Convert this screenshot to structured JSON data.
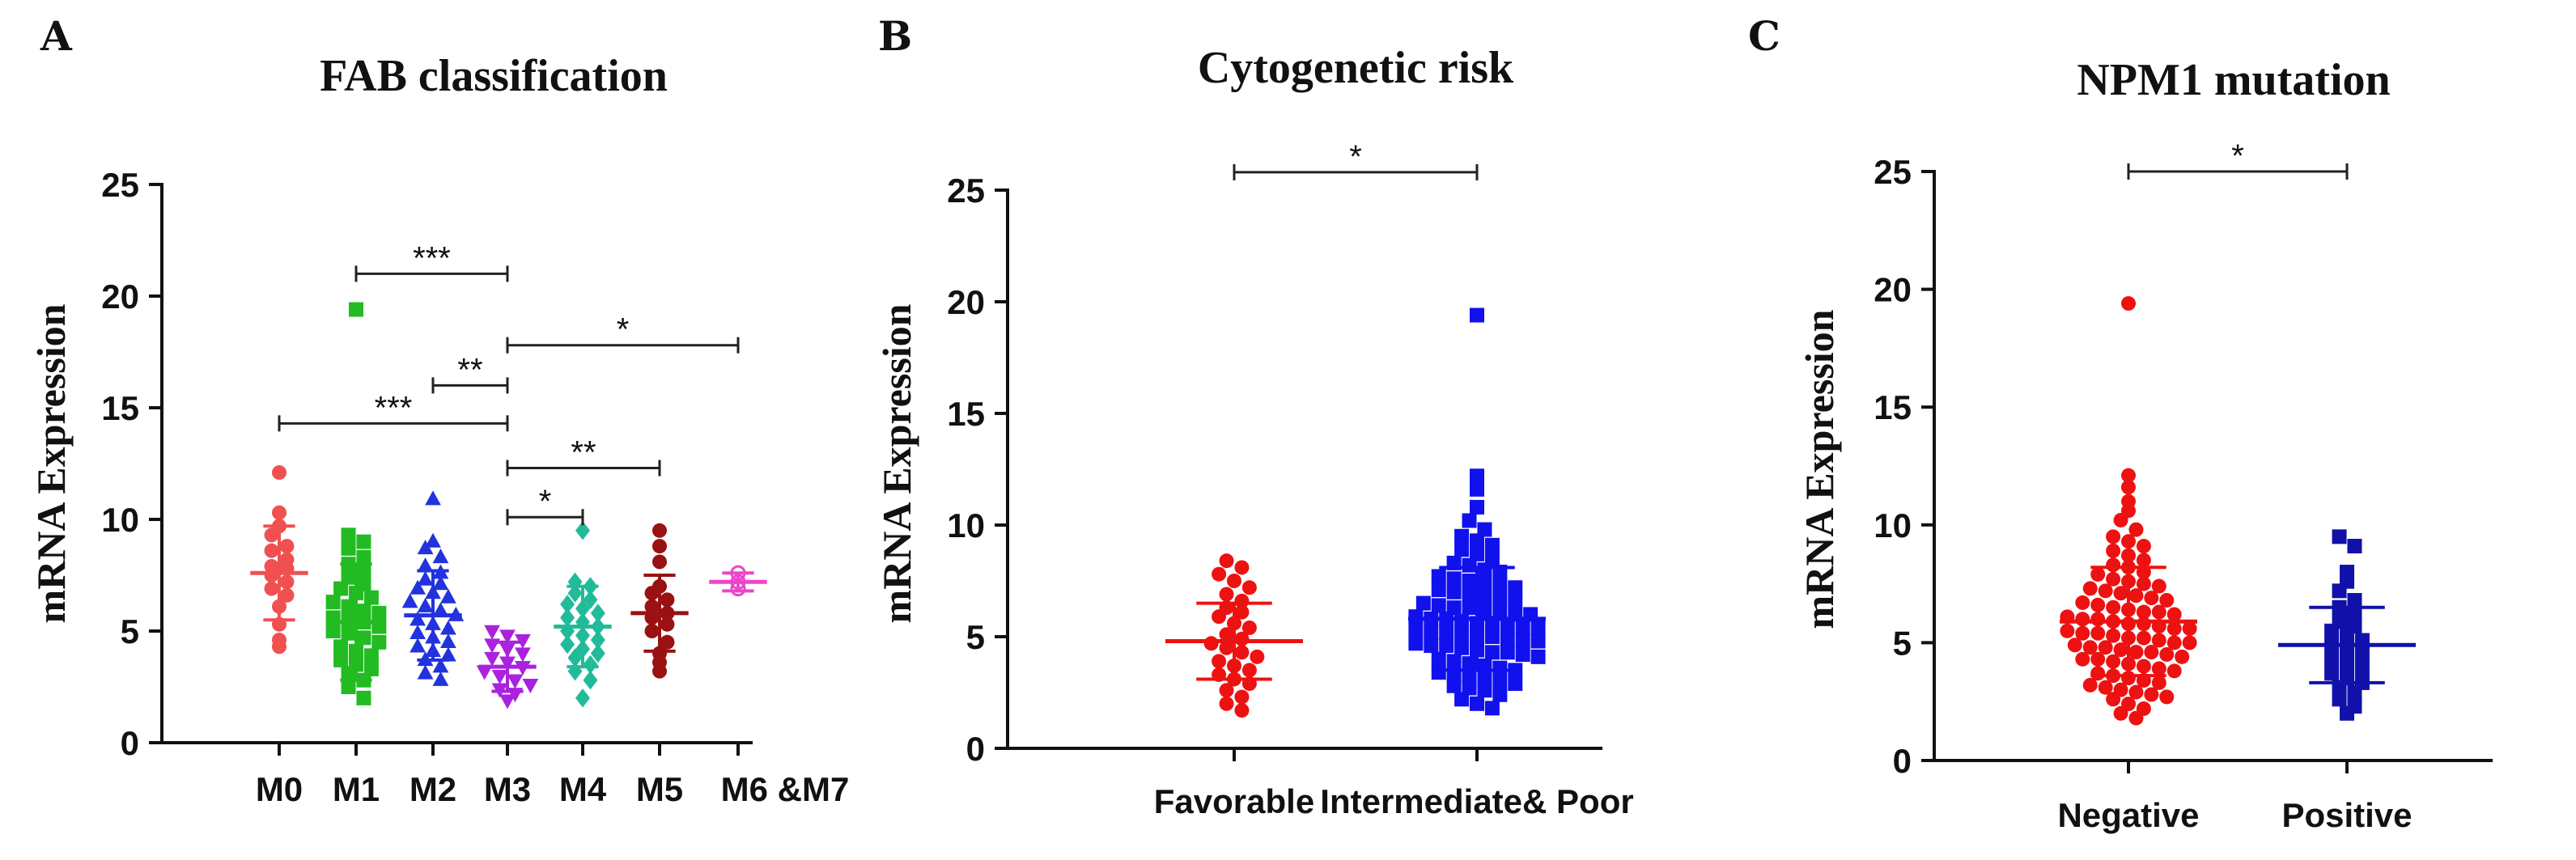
{
  "chart_data": [
    {
      "panel": "A",
      "type": "scatter",
      "title": "FAB classification",
      "ylabel": "mRNA Expression",
      "xlabel": "",
      "ylim": [
        0,
        25
      ],
      "yticks": [
        0,
        5,
        10,
        15,
        20,
        25
      ],
      "categories": [
        "M0",
        "M1",
        "M2",
        "M3",
        "M4",
        "M5",
        "M6 &M7"
      ],
      "groups": [
        {
          "name": "M0",
          "color": "#f05050",
          "marker": "circle",
          "mean": 7.6,
          "sd": 2.1,
          "values": [
            12.1,
            10.3,
            9.7,
            9.3,
            8.8,
            8.6,
            8.2,
            7.9,
            7.8,
            7.5,
            7.2,
            6.9,
            6.6,
            6.1,
            5.3,
            4.6,
            4.3
          ]
        },
        {
          "name": "M1",
          "color": "#22bb22",
          "marker": "square",
          "mean": 5.4,
          "sd": 2.6,
          "values": [
            19.4,
            9.3,
            9.0,
            8.7,
            8.3,
            8.0,
            7.7,
            7.4,
            7.1,
            6.9,
            6.7,
            6.5,
            6.3,
            6.1,
            5.9,
            5.8,
            5.6,
            5.5,
            5.4,
            5.2,
            5.0,
            4.9,
            4.7,
            4.5,
            4.3,
            4.1,
            3.9,
            3.7,
            3.5,
            3.3,
            3.1,
            2.8,
            2.5,
            2.0
          ]
        },
        {
          "name": "M2",
          "color": "#2233dd",
          "marker": "triangle-up",
          "mean": 5.7,
          "sd": 2.0,
          "values": [
            10.9,
            9.0,
            8.7,
            8.3,
            7.9,
            7.6,
            7.3,
            7.1,
            6.9,
            6.7,
            6.5,
            6.3,
            6.1,
            5.9,
            5.7,
            5.5,
            5.3,
            5.1,
            4.9,
            4.7,
            4.5,
            4.3,
            4.1,
            3.9,
            3.7,
            3.4,
            3.1,
            2.8
          ]
        },
        {
          "name": "M3",
          "color": "#aa22dd",
          "marker": "triangle-down",
          "mean": 3.4,
          "sd": 1.1,
          "values": [
            5.0,
            4.8,
            4.6,
            4.4,
            4.2,
            4.0,
            3.8,
            3.6,
            3.4,
            3.2,
            3.0,
            2.8,
            2.6,
            2.4,
            2.2,
            1.9
          ]
        },
        {
          "name": "M4",
          "color": "#22bb99",
          "marker": "diamond",
          "mean": 5.2,
          "sd": 1.8,
          "values": [
            9.5,
            7.2,
            7.0,
            6.7,
            6.4,
            6.2,
            6.0,
            5.8,
            5.6,
            5.4,
            5.2,
            5.0,
            4.8,
            4.6,
            4.4,
            4.2,
            4.0,
            3.8,
            3.5,
            3.2,
            2.8,
            2.0
          ]
        },
        {
          "name": "M5",
          "color": "#991111",
          "marker": "circle",
          "mean": 5.8,
          "sd": 1.7,
          "values": [
            9.5,
            8.8,
            8.1,
            7.0,
            6.7,
            6.4,
            6.1,
            5.8,
            5.6,
            5.3,
            5.0,
            4.5,
            4.0,
            3.6,
            3.2
          ]
        },
        {
          "name": "M6 &M7",
          "color": "#ee44cc",
          "marker": "circle-open",
          "mean": 7.2,
          "sd": 0.4,
          "values": [
            7.6,
            7.2,
            6.9
          ]
        }
      ],
      "comparisons": [
        {
          "from": "M1",
          "to": "M3",
          "y": 21.0,
          "label": "***"
        },
        {
          "from": "M3",
          "to": "M6 &M7",
          "y": 17.8,
          "label": "*"
        },
        {
          "from": "M2",
          "to": "M3",
          "y": 16.0,
          "label": "**"
        },
        {
          "from": "M0",
          "to": "M3",
          "y": 14.3,
          "label": "***"
        },
        {
          "from": "M3",
          "to": "M5",
          "y": 12.3,
          "label": "**"
        },
        {
          "from": "M3",
          "to": "M4",
          "y": 10.1,
          "label": "*"
        }
      ]
    },
    {
      "panel": "B",
      "type": "scatter",
      "title": "Cytogenetic risk",
      "ylabel": "mRNA Expression",
      "xlabel": "",
      "ylim": [
        0,
        25
      ],
      "yticks": [
        0,
        5,
        10,
        15,
        20,
        25
      ],
      "categories": [
        "Favorable",
        "Intermediate& Poor"
      ],
      "groups": [
        {
          "name": "Favorable",
          "color": "#ee1111",
          "marker": "circle",
          "mean": 4.8,
          "sd": 1.7,
          "values": [
            8.4,
            8.1,
            7.8,
            7.5,
            7.2,
            6.9,
            6.6,
            6.3,
            6.1,
            5.9,
            5.6,
            5.4,
            5.1,
            4.9,
            4.7,
            4.5,
            4.3,
            4.1,
            3.9,
            3.7,
            3.5,
            3.3,
            3.1,
            2.9,
            2.6,
            2.3,
            2.0,
            1.7
          ]
        },
        {
          "name": "Intermediate& Poor",
          "color": "#1111ee",
          "marker": "square",
          "mean": 5.8,
          "sd": 2.3,
          "values": [
            19.4,
            12.2,
            11.6,
            10.8,
            10.2,
            9.8,
            9.5,
            9.3,
            9.1,
            8.9,
            8.7,
            8.5,
            8.3,
            8.2,
            8.0,
            7.9,
            7.7,
            7.6,
            7.5,
            7.4,
            7.3,
            7.2,
            7.1,
            7.0,
            6.9,
            6.8,
            6.7,
            6.6,
            6.5,
            6.4,
            6.3,
            6.3,
            6.2,
            6.1,
            6.0,
            6.0,
            5.9,
            5.8,
            5.8,
            5.7,
            5.6,
            5.6,
            5.5,
            5.4,
            5.4,
            5.3,
            5.2,
            5.2,
            5.1,
            5.0,
            5.0,
            4.9,
            4.8,
            4.8,
            4.7,
            4.6,
            4.6,
            4.5,
            4.4,
            4.3,
            4.3,
            4.2,
            4.1,
            4.0,
            3.9,
            3.8,
            3.7,
            3.6,
            3.5,
            3.4,
            3.3,
            3.2,
            3.1,
            3.0,
            2.9,
            2.8,
            2.7,
            2.6,
            2.4,
            2.2,
            2.0,
            1.8
          ]
        }
      ],
      "comparisons": [
        {
          "from": "Favorable",
          "to": "Intermediate& Poor",
          "y": 25.8,
          "label": "*"
        }
      ]
    },
    {
      "panel": "C",
      "type": "scatter",
      "title": "NPM1  mutation",
      "ylabel": "mRNA Expression",
      "xlabel": "",
      "ylim": [
        0,
        25
      ],
      "yticks": [
        0,
        5,
        10,
        15,
        20,
        25
      ],
      "categories": [
        "Negative",
        "Positive"
      ],
      "groups": [
        {
          "name": "Negative",
          "color": "#ee1111",
          "marker": "circle",
          "mean": 5.9,
          "sd": 2.3,
          "values": [
            19.4,
            12.1,
            11.6,
            11.0,
            10.6,
            10.2,
            9.8,
            9.5,
            9.3,
            9.1,
            8.9,
            8.7,
            8.5,
            8.3,
            8.2,
            8.0,
            7.9,
            7.7,
            7.6,
            7.5,
            7.4,
            7.3,
            7.2,
            7.1,
            7.0,
            6.9,
            6.8,
            6.7,
            6.6,
            6.5,
            6.4,
            6.3,
            6.3,
            6.2,
            6.1,
            6.0,
            6.0,
            5.9,
            5.8,
            5.8,
            5.7,
            5.6,
            5.6,
            5.5,
            5.4,
            5.4,
            5.3,
            5.2,
            5.2,
            5.1,
            5.0,
            5.0,
            4.9,
            4.8,
            4.8,
            4.7,
            4.6,
            4.6,
            4.5,
            4.4,
            4.3,
            4.3,
            4.2,
            4.1,
            4.0,
            3.9,
            3.8,
            3.7,
            3.6,
            3.5,
            3.4,
            3.3,
            3.2,
            3.1,
            3.0,
            2.9,
            2.8,
            2.7,
            2.6,
            2.4,
            2.2,
            2.0,
            1.8
          ]
        },
        {
          "name": "Positive",
          "color": "#1111aa",
          "marker": "square",
          "mean": 4.9,
          "sd": 1.6,
          "values": [
            9.5,
            9.1,
            8.0,
            7.6,
            7.2,
            6.8,
            6.5,
            6.2,
            5.9,
            5.7,
            5.5,
            5.3,
            5.1,
            4.9,
            4.7,
            4.5,
            4.3,
            4.1,
            3.9,
            3.7,
            3.5,
            3.3,
            3.1,
            2.9,
            2.6,
            2.3,
            2.0
          ]
        }
      ],
      "comparisons": [
        {
          "from": "Negative",
          "to": "Positive",
          "y": 25.0,
          "label": "*"
        }
      ]
    }
  ]
}
